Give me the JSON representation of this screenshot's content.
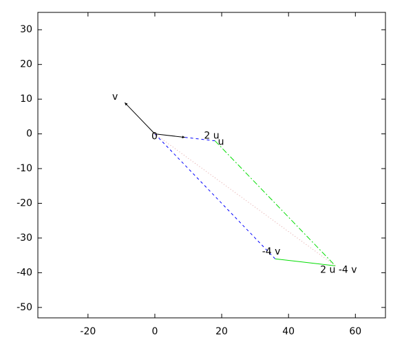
{
  "chart_data": {
    "type": "vector",
    "points": [
      {
        "label": "0",
        "x": 0,
        "y": 0
      },
      {
        "label": "u",
        "x": 9,
        "y": -1
      },
      {
        "label": "v",
        "x": -9,
        "y": 9
      },
      {
        "label": "2 u",
        "x": 18,
        "y": -2
      },
      {
        "label": "-4 v",
        "x": 36,
        "y": -36
      },
      {
        "label": "2 u -4 v",
        "x": 54,
        "y": -38
      }
    ],
    "xlim": [
      -35,
      69
    ],
    "ylim": [
      -53,
      35
    ],
    "xticks": [
      -20,
      0,
      20,
      40,
      60
    ],
    "yticks": [
      -50,
      -40,
      -30,
      -20,
      -10,
      0,
      10,
      20,
      30
    ]
  }
}
